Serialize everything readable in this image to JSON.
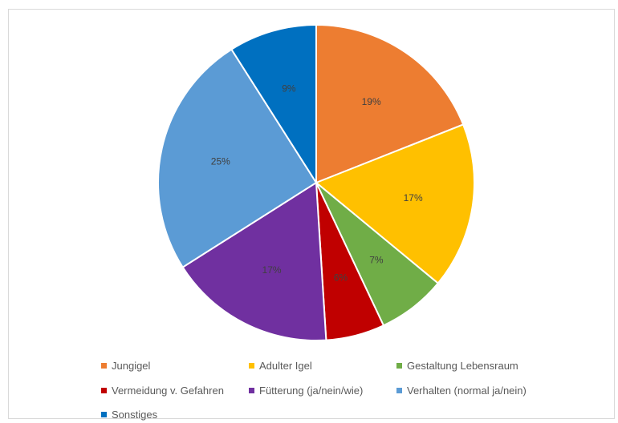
{
  "chart_data": {
    "type": "pie",
    "slices": [
      {
        "name": "Jungigel",
        "value": 19,
        "label": "19%",
        "color": "#ED7D31"
      },
      {
        "name": "Adulter Igel",
        "value": 17,
        "label": "17%",
        "color": "#FFC000"
      },
      {
        "name": "Gestaltung Lebensraum",
        "value": 7,
        "label": "7%",
        "color": "#70AD47"
      },
      {
        "name": "Vermeidung v. Gefahren",
        "value": 6,
        "label": "6%",
        "color": "#C00000"
      },
      {
        "name": "Fütterung (ja/nein/wie)",
        "value": 17,
        "label": "17%",
        "color": "#7030A0"
      },
      {
        "name": "Verhalten (normal ja/nein)",
        "value": 25,
        "label": "25%",
        "color": "#5B9BD5"
      },
      {
        "name": "Sonstiges",
        "value": 9,
        "label": "9%",
        "color": "#0070C0"
      }
    ],
    "start_angle_deg": 0,
    "direction": "clockwise",
    "legend_position": "bottom"
  }
}
